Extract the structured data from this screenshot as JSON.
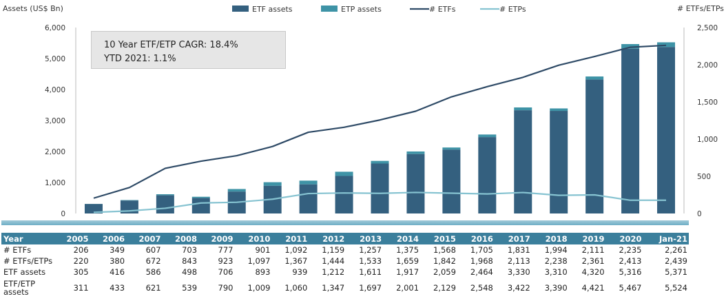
{
  "chart_data": {
    "type": "bar+line",
    "left_axis_label": "Assets (US$ Bn)",
    "right_axis_label": "# ETFs/ETPs",
    "ylim_left": [
      0,
      6000
    ],
    "ylim_right": [
      0,
      2500
    ],
    "left_ticks": [
      "0",
      "1,000",
      "2,000",
      "3,000",
      "4,000",
      "5,000",
      "6,000"
    ],
    "right_ticks": [
      "0",
      "500",
      "1,000",
      "1,500",
      "2,000",
      "2,500"
    ],
    "categories": [
      "2005",
      "2006",
      "2007",
      "2008",
      "2009",
      "2010",
      "2011",
      "2012",
      "2013",
      "2014",
      "2015",
      "2016",
      "2017",
      "2018",
      "2019",
      "2020",
      "Jan-21"
    ],
    "series": [
      {
        "name": "ETF assets",
        "type": "bar",
        "axis": "left",
        "color": "#34607f",
        "values": [
          305,
          416,
          586,
          498,
          706,
          893,
          939,
          1212,
          1611,
          1917,
          2059,
          2464,
          3330,
          3310,
          4320,
          5316,
          5371
        ]
      },
      {
        "name": "ETP assets",
        "type": "bar",
        "axis": "left",
        "color": "#3e93a6",
        "values": [
          311,
          433,
          621,
          539,
          790,
          1009,
          1060,
          1347,
          1697,
          2001,
          2129,
          2548,
          3422,
          3390,
          4421,
          5467,
          5524
        ]
      },
      {
        "name": "# ETFs",
        "type": "line",
        "axis": "right",
        "color": "#2e4a66",
        "values": [
          206,
          349,
          607,
          703,
          777,
          901,
          1092,
          1159,
          1257,
          1375,
          1568,
          1705,
          1831,
          1994,
          2111,
          2235,
          2261
        ]
      },
      {
        "name": "# ETPs",
        "type": "line",
        "axis": "right",
        "color": "#86c3d1",
        "values": [
          15,
          35,
          70,
          141,
          151,
          192,
          268,
          276,
          271,
          283,
          273,
          263,
          282,
          244,
          250,
          178,
          178
        ]
      }
    ],
    "legend_position": "top"
  },
  "callout": {
    "line1": "10 Year ETF/ETP CAGR: 18.4%",
    "line2": "YTD 2021: 1.1%"
  },
  "table": {
    "header": [
      "Year",
      "2005",
      "2006",
      "2007",
      "2008",
      "2009",
      "2010",
      "2011",
      "2012",
      "2013",
      "2014",
      "2015",
      "2016",
      "2017",
      "2018",
      "2019",
      "2020",
      "Jan-21"
    ],
    "rows": [
      {
        "label": "# ETFs",
        "cells": [
          "206",
          "349",
          "607",
          "703",
          "777",
          "901",
          "1,092",
          "1,159",
          "1,257",
          "1,375",
          "1,568",
          "1,705",
          "1,831",
          "1,994",
          "2,111",
          "2,235",
          "2,261"
        ]
      },
      {
        "label": "# ETFs/ETPs",
        "cells": [
          "220",
          "380",
          "672",
          "843",
          "923",
          "1,097",
          "1,367",
          "1,444",
          "1,533",
          "1,659",
          "1,842",
          "1,968",
          "2,113",
          "2,238",
          "2,361",
          "2,413",
          "2,439"
        ]
      },
      {
        "label": "ETF assets",
        "cells": [
          "305",
          "416",
          "586",
          "498",
          "706",
          "893",
          "939",
          "1,212",
          "1,611",
          "1,917",
          "2,059",
          "2,464",
          "3,330",
          "3,310",
          "4,320",
          "5,316",
          "5,371"
        ]
      },
      {
        "label": "ETF/ETP assets",
        "cells": [
          "311",
          "433",
          "621",
          "539",
          "790",
          "1,009",
          "1,060",
          "1,347",
          "1,697",
          "2,001",
          "2,129",
          "2,548",
          "3,422",
          "3,390",
          "4,421",
          "5,467",
          "5,524"
        ]
      }
    ]
  }
}
